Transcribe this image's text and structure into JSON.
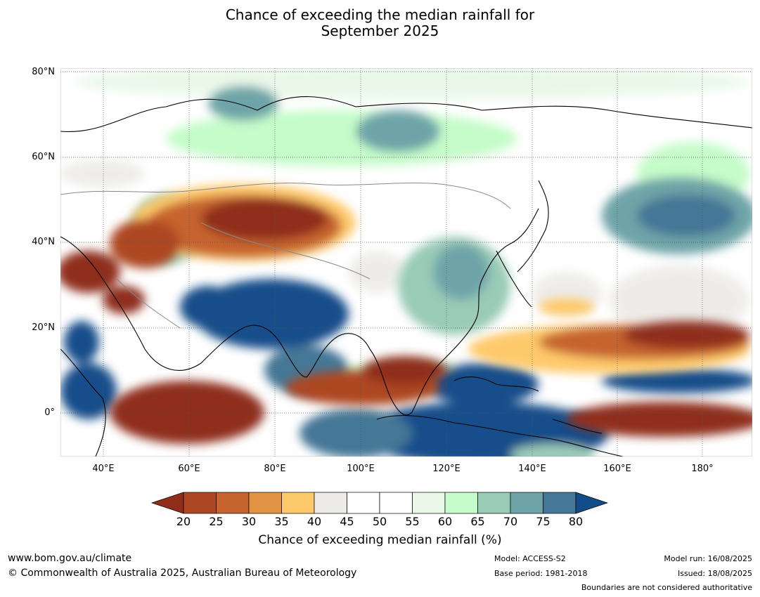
{
  "title_line1": "Chance of exceeding the median rainfall for",
  "title_line2": "September 2025",
  "lat_labels": [
    "80°N",
    "60°N",
    "40°N",
    "20°N",
    "0°"
  ],
  "lon_labels": [
    "40°E",
    "60°E",
    "80°E",
    "100°E",
    "120°E",
    "140°E",
    "160°E",
    "180°"
  ],
  "colorbar": {
    "ticks": [
      "20",
      "25",
      "30",
      "35",
      "40",
      "45",
      "50",
      "55",
      "60",
      "65",
      "70",
      "75",
      "80"
    ],
    "colors": [
      "#8f2e1b",
      "#ad4623",
      "#c6642f",
      "#e19544",
      "#fec96b",
      "#ecebe8",
      "#ffffff",
      "#ffffff",
      "#eaf8ea",
      "#c5fcc9",
      "#9acbb7",
      "#6ea4a8",
      "#457796",
      "#124d8a"
    ],
    "title": "Chance of exceeding median rainfall (%)"
  },
  "footer": {
    "website": "www.bom.gov.au/climate",
    "copyright": "© Commonwealth of Australia 2025, Australian Bureau of Meteorology",
    "model": "Model: ACCESS-S2",
    "base_period": "Base period: 1981-2018",
    "model_run": "Model run: 16/08/2025",
    "issued": "Issued: 18/08/2025",
    "disclaimer": "Boundaries are not considered authoritative"
  }
}
